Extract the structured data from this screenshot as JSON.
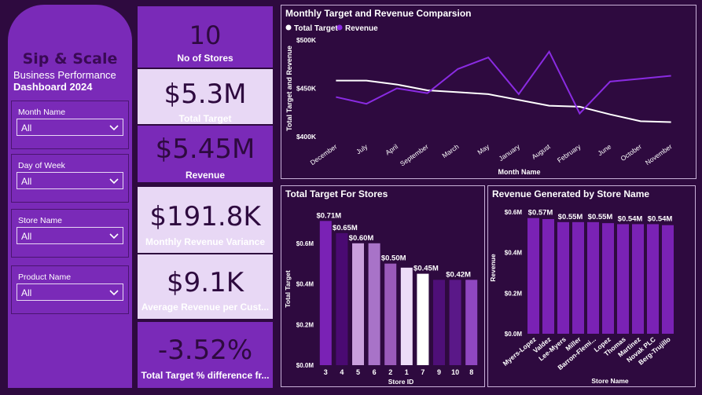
{
  "sidebar": {
    "title": "Sip & Scale",
    "subtitle_line1": "Business Performance",
    "subtitle_line2": "Dashboard  2024",
    "slicers": [
      {
        "label": "Month Name",
        "value": "All"
      },
      {
        "label": "Day of Week",
        "value": "All"
      },
      {
        "label": "Store Name",
        "value": "All"
      },
      {
        "label": "Product Name",
        "value": "All"
      }
    ]
  },
  "kpis": [
    {
      "value": "10",
      "label": "No of Stores"
    },
    {
      "value": "$5.3M",
      "label": "Total Target"
    },
    {
      "value": "$5.45M",
      "label": "Revenue"
    },
    {
      "value": "$191.8K",
      "label": "Monthly Revenue Variance"
    },
    {
      "value": "$9.1K",
      "label": "Average Revenue per Cust..."
    },
    {
      "value": "-3.52%",
      "label": "Total Target % difference fr..."
    }
  ],
  "colors": {
    "background": "#2e0a3f",
    "sidebar": "#7a2ab8",
    "target_line": "#ffffff",
    "revenue_line": "#8a2be2",
    "store_bar": "#7a22b5"
  },
  "chart_data": [
    {
      "type": "line",
      "title": "Monthly Target and Revenue Comparsion",
      "xlabel": "Month Name",
      "ylabel": "Total Target and Revenue",
      "legend": "top-left",
      "categories": [
        "December",
        "July",
        "April",
        "September",
        "March",
        "May",
        "January",
        "August",
        "February",
        "June",
        "October",
        "November"
      ],
      "yticks": [
        "$400K",
        "$450K",
        "$500K"
      ],
      "ylim": [
        400000,
        500000
      ],
      "series": [
        {
          "name": "Total Target",
          "values": [
            458000,
            458000,
            454000,
            448000,
            446000,
            444000,
            438000,
            432000,
            431000,
            423000,
            416000,
            415000
          ]
        },
        {
          "name": "Revenue",
          "values": [
            441000,
            434000,
            450000,
            445000,
            470000,
            482000,
            444000,
            488000,
            424000,
            457000,
            460000,
            463000
          ]
        }
      ]
    },
    {
      "type": "bar",
      "title": "Total Target For Stores",
      "xlabel": "Store ID",
      "ylabel": "Total Target",
      "categories": [
        "3",
        "4",
        "5",
        "6",
        "2",
        "1",
        "7",
        "9",
        "10",
        "8"
      ],
      "values": [
        0.71,
        0.65,
        0.6,
        0.6,
        0.5,
        0.48,
        0.45,
        0.42,
        0.42,
        0.42
      ],
      "data_labels": [
        "$0.71M",
        "$0.65M",
        "$0.60M",
        "",
        "$0.50M",
        "",
        "$0.45M",
        "",
        "$0.42M",
        ""
      ],
      "bar_colors": [
        "#7a22b5",
        "#4a0a72",
        "#c9a0dc",
        "#a873c8",
        "#9a5aba",
        "#eddcf7",
        "#ffffff",
        "#4e0f78",
        "#5a1888",
        "#8f47c0"
      ],
      "yticks": [
        "$0.0M",
        "$0.2M",
        "$0.4M",
        "$0.6M"
      ],
      "ylim": [
        0,
        0.75
      ]
    },
    {
      "type": "bar",
      "title": "Revenue Generated by Store Name",
      "xlabel": "Store Name",
      "ylabel": "Revenue",
      "categories": [
        "Myers-Lopez",
        "Valdez",
        "Lee-Myers",
        "Miller",
        "Barron-Flemi...",
        "Lopez",
        "Thomas",
        "Martinez",
        "Novak PLC",
        "Berg-Trujillo"
      ],
      "values": [
        0.57,
        0.565,
        0.55,
        0.55,
        0.55,
        0.545,
        0.54,
        0.54,
        0.54,
        0.535
      ],
      "data_labels": [
        "$0.57M",
        "",
        "$0.55M",
        "",
        "$0.55M",
        "",
        "$0.54M",
        "",
        "$0.54M",
        ""
      ],
      "yticks": [
        "$0.0M",
        "$0.2M",
        "$0.4M",
        "$0.6M"
      ],
      "ylim": [
        0,
        0.65
      ]
    }
  ]
}
